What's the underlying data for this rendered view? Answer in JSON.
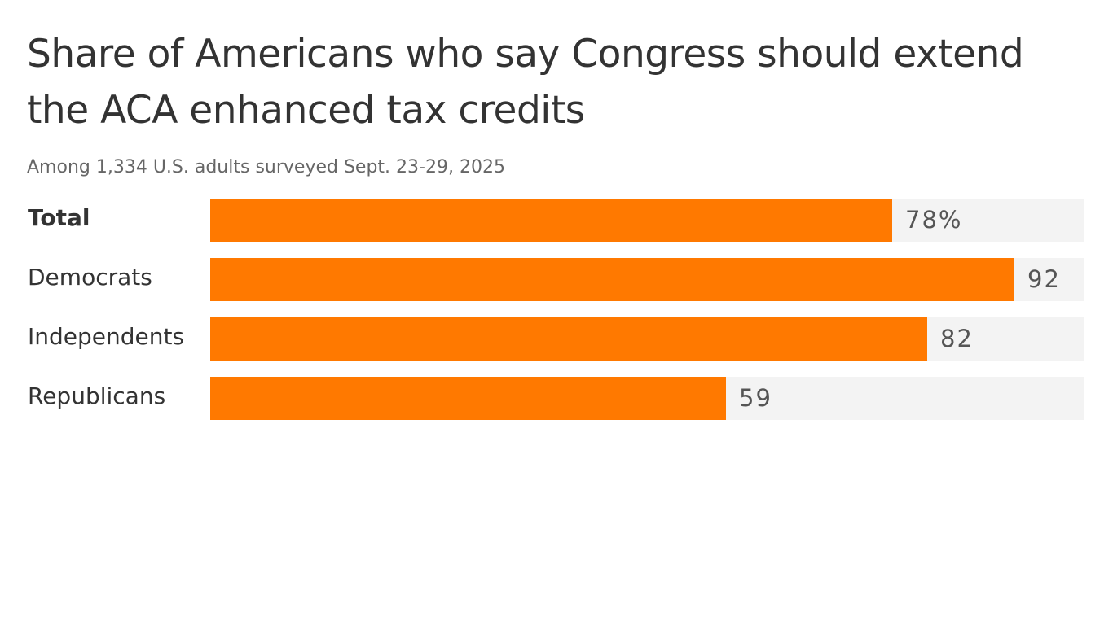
{
  "chart_data": {
    "type": "bar",
    "orientation": "horizontal",
    "title": "Share of Americans who say Congress should extend the ACA enhanced tax credits",
    "subtitle": "Among 1,334 U.S. adults surveyed Sept. 23-29, 2025",
    "categories": [
      "Total",
      "Democrats",
      "Independents",
      "Republicans"
    ],
    "values": [
      78,
      92,
      82,
      59
    ],
    "value_labels": [
      "78%",
      "92",
      "82",
      "59"
    ],
    "xlim": [
      0,
      100
    ],
    "grid": false,
    "colors": {
      "bar": "#ff7900",
      "track": "#f3f3f3"
    }
  }
}
